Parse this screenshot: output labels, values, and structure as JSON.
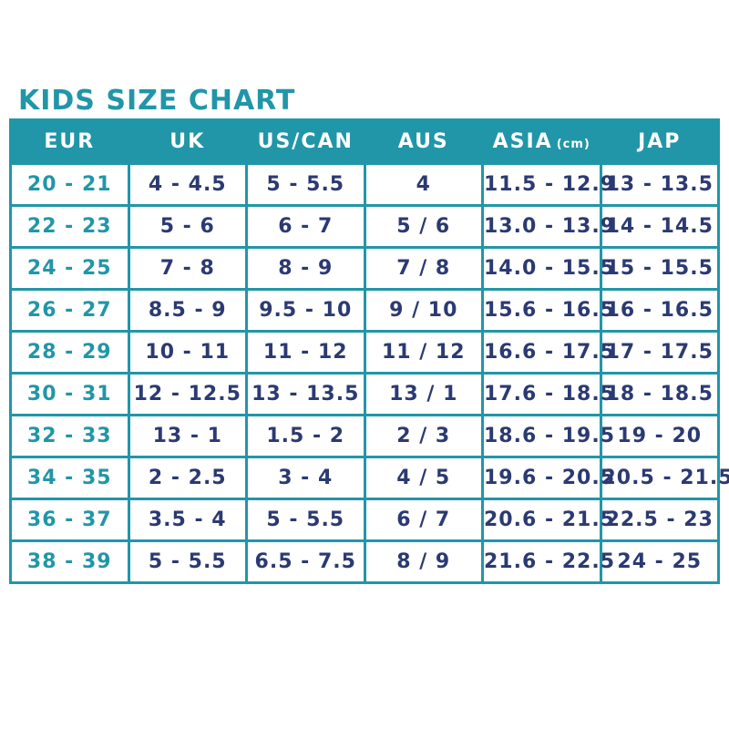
{
  "title": "KIDS SIZE CHART",
  "colors": {
    "accent_teal": "#2196A8",
    "value_navy": "#2B3A72",
    "header_text": "#FFFFFF",
    "background": "#FFFFFF"
  },
  "table_header": [
    {
      "label": "EUR",
      "unit": ""
    },
    {
      "label": "UK",
      "unit": ""
    },
    {
      "label": "US/CAN",
      "unit": ""
    },
    {
      "label": "AUS",
      "unit": ""
    },
    {
      "label": "ASIA",
      "unit": "(cm)"
    },
    {
      "label": "JAP",
      "unit": ""
    }
  ],
  "chart_data": {
    "type": "table",
    "title": "KIDS SIZE CHART",
    "columns": [
      "EUR",
      "UK",
      "US/CAN",
      "AUS",
      "ASIA (cm)",
      "JAP"
    ],
    "rows": [
      [
        "20 - 21",
        "4 - 4.5",
        "5 - 5.5",
        "4",
        "11.5 - 12.9",
        "13 - 13.5"
      ],
      [
        "22 - 23",
        "5 - 6",
        "6 - 7",
        "5 / 6",
        "13.0 - 13.9",
        "14 - 14.5"
      ],
      [
        "24 - 25",
        "7 - 8",
        "8 - 9",
        "7 / 8",
        "14.0 - 15.5",
        "15 - 15.5"
      ],
      [
        "26 - 27",
        "8.5 - 9",
        "9.5 - 10",
        "9 / 10",
        "15.6 - 16.5",
        "16 - 16.5"
      ],
      [
        "28 - 29",
        "10 - 11",
        "11 - 12",
        "11 / 12",
        "16.6 - 17.5",
        "17 - 17.5"
      ],
      [
        "30 - 31",
        "12 - 12.5",
        "13 - 13.5",
        "13 / 1",
        "17.6 - 18.5",
        "18 - 18.5"
      ],
      [
        "32 - 33",
        "13 - 1",
        "1.5 - 2",
        "2 / 3",
        "18.6 - 19.5",
        "19 - 20"
      ],
      [
        "34 - 35",
        "2 - 2.5",
        "3 - 4",
        "4 / 5",
        "19.6 - 20.5",
        "20.5 - 21.5"
      ],
      [
        "36 - 37",
        "3.5 - 4",
        "5 - 5.5",
        "6 / 7",
        "20.6 - 21.5",
        "22.5 - 23"
      ],
      [
        "38 - 39",
        "5 - 5.5",
        "6.5 - 7.5",
        "8 / 9",
        "21.6 - 22.5",
        "24 - 25"
      ]
    ]
  }
}
